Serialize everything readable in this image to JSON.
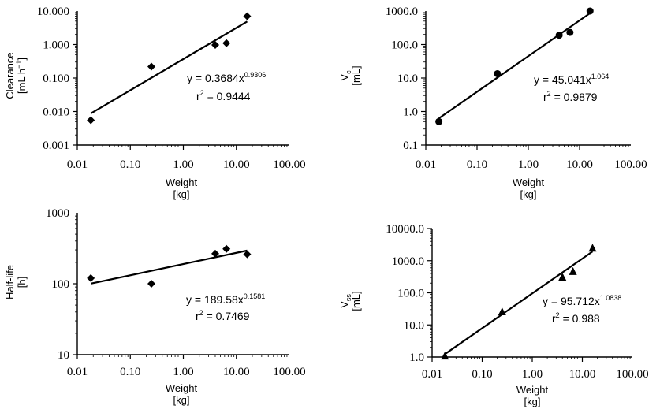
{
  "chart_data": [
    {
      "type": "scatter",
      "scale": "log-log",
      "ylabel": "Clearance",
      "yunit": "[mL h",
      "yunit_sup": "−1",
      "yunit_end": "]",
      "xlabel": "Weight",
      "xunit": "[kg]",
      "xticks": [
        "0.01",
        "0.10",
        "1.00",
        "10.00",
        "100.00"
      ],
      "yticks": [
        "0.001",
        "0.010",
        "0.100",
        "1.000",
        "10.000"
      ],
      "xlim": [
        0.01,
        100
      ],
      "ylim": [
        0.001,
        10
      ],
      "marker": "diamond",
      "x": [
        0.018,
        0.25,
        4.0,
        6.5,
        16.0
      ],
      "y": [
        0.0055,
        0.22,
        0.97,
        1.1,
        7.0
      ],
      "fit": {
        "a": 0.3684,
        "b": 0.9306,
        "x_range": [
          0.018,
          16.0
        ]
      },
      "equation": {
        "prefix": "y = 0.3684x",
        "exponent": "0.9306",
        "r2_prefix": "r",
        "r2_sup": "2",
        "r2_value": " = 0.9444"
      }
    },
    {
      "type": "scatter",
      "scale": "log-log",
      "ylabel": "V",
      "ylabel_sub": "c",
      "yunit": "[mL]",
      "xlabel": "Weight",
      "xunit": "[kg]",
      "xticks": [
        "0.01",
        "0.10",
        "1.00",
        "10.00",
        "100.00"
      ],
      "yticks": [
        "0.1",
        "1.0",
        "10.0",
        "100.0",
        "1000.0"
      ],
      "xlim": [
        0.01,
        100
      ],
      "ylim": [
        0.1,
        1000
      ],
      "marker": "circle",
      "x": [
        0.018,
        0.25,
        4.0,
        6.5,
        16.0
      ],
      "y": [
        0.5,
        13.5,
        190,
        230,
        1000
      ],
      "fit": {
        "a": 45.041,
        "b": 1.064,
        "x_range": [
          0.018,
          16.0
        ]
      },
      "equation": {
        "prefix": "y = 45.041x",
        "exponent": "1.064",
        "r2_prefix": "r",
        "r2_sup": "2",
        "r2_value": " = 0.9879"
      }
    },
    {
      "type": "scatter",
      "scale": "log-log",
      "ylabel": "Half-life",
      "yunit": "[h]",
      "xlabel": "Weight",
      "xunit": "[kg]",
      "xticks": [
        "0.01",
        "0.10",
        "1.00",
        "10.00",
        "100.00"
      ],
      "yticks": [
        "10",
        "100",
        "1000"
      ],
      "xlim": [
        0.01,
        100
      ],
      "ylim": [
        10,
        1000
      ],
      "marker": "diamond",
      "x": [
        0.018,
        0.25,
        4.0,
        6.5,
        16.0
      ],
      "y": [
        120,
        100,
        265,
        310,
        260
      ],
      "fit": {
        "a": 189.58,
        "b": 0.1581,
        "x_range": [
          0.018,
          16.0
        ]
      },
      "equation": {
        "prefix": "y = 189.58x",
        "exponent": "0.1581",
        "r2_prefix": "r",
        "r2_sup": "2",
        "r2_value": " = 0.7469"
      }
    },
    {
      "type": "scatter",
      "scale": "log-log",
      "ylabel": "V",
      "ylabel_sub": "ss",
      "yunit": "[mL]",
      "xlabel": "Weight",
      "xunit": "[kg]",
      "xticks": [
        "0.01",
        "0.10",
        "1.00",
        "10.00",
        "100.00"
      ],
      "yticks": [
        "1.0",
        "10.0",
        "100.0",
        "1000.0",
        "10000.0"
      ],
      "xlim": [
        0.01,
        100
      ],
      "ylim": [
        1,
        10000
      ],
      "marker": "triangle",
      "x": [
        0.018,
        0.25,
        4.0,
        6.5,
        16.0
      ],
      "y": [
        1.05,
        25,
        300,
        450,
        2400
      ],
      "fit": {
        "a": 95.712,
        "b": 1.0838,
        "x_range": [
          0.018,
          16.0
        ]
      },
      "equation": {
        "prefix": "y = 95.712x",
        "exponent": "1.0838",
        "r2_prefix": "r",
        "r2_sup": "2",
        "r2_value": " = 0.988"
      }
    }
  ]
}
